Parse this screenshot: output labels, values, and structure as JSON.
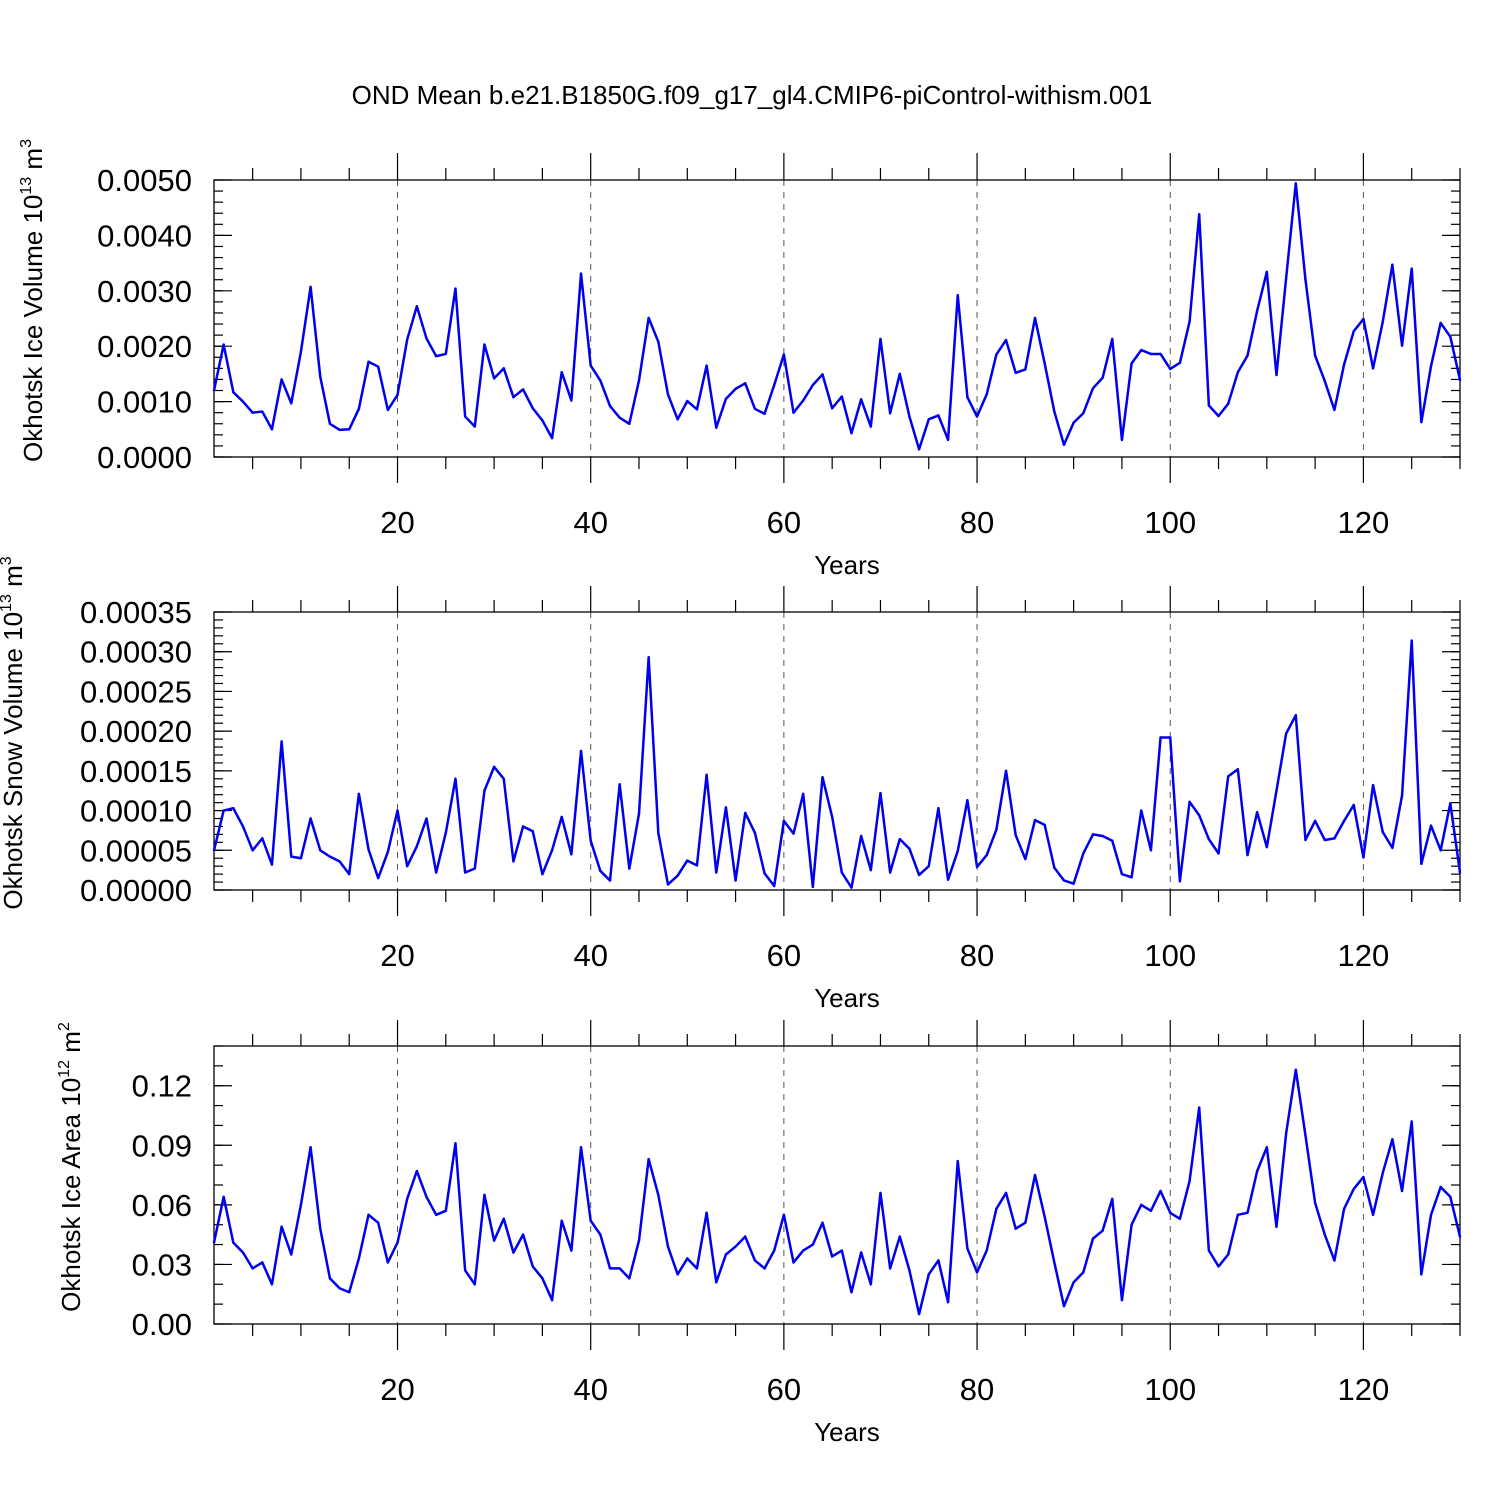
{
  "title": "OND Mean b.e21.B1850G.f09_g17_gl4.CMIP6-piControl-withism.001",
  "colors": {
    "line": "#0000ee",
    "grid": "#555555",
    "axis": "#000000"
  },
  "chart_data": [
    {
      "type": "line",
      "ylabel": "Okhotsk Ice Volume 10",
      "ylabel_sup": "13",
      "ylabel_unit": " m",
      "ylabel_unit_sup": "3",
      "xlabel": "Years",
      "xlim": [
        1,
        130
      ],
      "ylim": [
        0,
        0.005
      ],
      "xticks": [
        20,
        40,
        60,
        80,
        100,
        120
      ],
      "xtick_labels": [
        "20",
        "40",
        "60",
        "80",
        "100",
        "120"
      ],
      "yticks": [
        0,
        0.001,
        0.002,
        0.003,
        0.004,
        0.005
      ],
      "ytick_labels": [
        "0.0000",
        "0.0010",
        "0.0020",
        "0.0030",
        "0.0040",
        "0.0050"
      ],
      "y_minor_step": 0.0002,
      "grid": "vertical-dashed",
      "series": [
        {
          "values": [
            0.0012,
            0.00203,
            0.00117,
            0.001,
            0.0008,
            0.00082,
            0.0005,
            0.0014,
            0.00097,
            0.0019,
            0.00307,
            0.00145,
            0.0006,
            0.00049,
            0.0005,
            0.00087,
            0.00172,
            0.00163,
            0.00085,
            0.00112,
            0.00212,
            0.00272,
            0.00214,
            0.00182,
            0.00186,
            0.00304,
            0.00073,
            0.00055,
            0.00203,
            0.00142,
            0.0016,
            0.00108,
            0.00122,
            0.00088,
            0.00066,
            0.00034,
            0.00153,
            0.00102,
            0.00331,
            0.00165,
            0.00138,
            0.00092,
            0.00071,
            0.0006,
            0.00138,
            0.00251,
            0.00208,
            0.00113,
            0.00068,
            0.00101,
            0.00086,
            0.00165,
            0.00053,
            0.00105,
            0.00123,
            0.00133,
            0.00087,
            0.00078,
            0.0013,
            0.00185,
            0.0008,
            0.00102,
            0.0013,
            0.00149,
            0.00088,
            0.00109,
            0.00043,
            0.00104,
            0.00055,
            0.00213,
            0.00079,
            0.0015,
            0.00073,
            0.00014,
            0.00068,
            0.00075,
            0.00031,
            0.00292,
            0.00108,
            0.00073,
            0.00113,
            0.00185,
            0.00211,
            0.00152,
            0.00158,
            0.00251,
            0.00169,
            0.00082,
            0.00022,
            0.00062,
            0.00079,
            0.00124,
            0.00143,
            0.00213,
            0.00031,
            0.00169,
            0.00193,
            0.00186,
            0.00186,
            0.00159,
            0.0017,
            0.00244,
            0.00438,
            0.00093,
            0.00074,
            0.00096,
            0.00153,
            0.00183,
            0.00264,
            0.00334,
            0.00148,
            0.00323,
            0.00494,
            0.0032,
            0.00183,
            0.00137,
            0.00085,
            0.00167,
            0.00227,
            0.00249,
            0.0016,
            0.00244,
            0.00347,
            0.00201,
            0.0034,
            0.00063,
            0.00164,
            0.00242,
            0.00217,
            0.00139
          ]
        }
      ]
    },
    {
      "type": "line",
      "ylabel": "Okhotsk Snow Volume 10",
      "ylabel_sup": "13",
      "ylabel_unit": " m",
      "ylabel_unit_sup": "3",
      "xlabel": "Years",
      "xlim": [
        1,
        130
      ],
      "ylim": [
        0,
        0.00035
      ],
      "xticks": [
        20,
        40,
        60,
        80,
        100,
        120
      ],
      "xtick_labels": [
        "20",
        "40",
        "60",
        "80",
        "100",
        "120"
      ],
      "yticks": [
        0,
        5e-05,
        0.0001,
        0.00015,
        0.0002,
        0.00025,
        0.0003,
        0.00035
      ],
      "ytick_labels": [
        "0.00000",
        "0.00005",
        "0.00010",
        "0.00015",
        "0.00020",
        "0.00025",
        "0.00030",
        "0.00035"
      ],
      "y_minor_step": 1e-05,
      "grid": "vertical-dashed",
      "series": [
        {
          "values": [
            5e-05,
            0.0001,
            0.000103,
            8e-05,
            5e-05,
            6.5e-05,
            3.2e-05,
            0.000187,
            4.2e-05,
            4e-05,
            9e-05,
            5e-05,
            4.2e-05,
            3.6e-05,
            2e-05,
            0.000121,
            5.1e-05,
            1.5e-05,
            4.8e-05,
            0.0001,
            3e-05,
            5.5e-05,
            9e-05,
            2.2e-05,
            7.2e-05,
            0.00014,
            2.2e-05,
            2.7e-05,
            0.000125,
            0.000155,
            0.00014,
            3.6e-05,
            8e-05,
            7.4e-05,
            2e-05,
            5e-05,
            9.2e-05,
            4.5e-05,
            0.000175,
            6.2e-05,
            2.4e-05,
            1.2e-05,
            0.000133,
            2.7e-05,
            9.6e-05,
            0.000293,
            7.2e-05,
            7e-06,
            1.8e-05,
            3.7e-05,
            3.1e-05,
            0.000145,
            2.2e-05,
            0.000104,
            1.2e-05,
            9.7e-05,
            7.2e-05,
            2.1e-05,
            5e-06,
            8.7e-05,
            7.1e-05,
            0.000121,
            4e-06,
            0.000142,
            9.2e-05,
            2.2e-05,
            3e-06,
            6.8e-05,
            2.5e-05,
            0.000122,
            2.2e-05,
            6.4e-05,
            5.2e-05,
            1.9e-05,
            3e-05,
            0.000103,
            1.3e-05,
            4.9e-05,
            0.000113,
            2.9e-05,
            4.4e-05,
            7.6e-05,
            0.00015,
            6.9e-05,
            3.9e-05,
            8.8e-05,
            8.2e-05,
            2.8e-05,
            1.2e-05,
            8e-06,
            4.6e-05,
            7e-05,
            6.8e-05,
            6.2e-05,
            2e-05,
            1.6e-05,
            0.0001,
            5e-05,
            0.000192,
            0.000192,
            1.1e-05,
            0.000111,
            9.4e-05,
            6.4e-05,
            4.6e-05,
            0.000143,
            0.000152,
            4.4e-05,
            9.8e-05,
            5.4e-05,
            0.000125,
            0.000197,
            0.00022,
            6.3e-05,
            8.7e-05,
            6.3e-05,
            6.5e-05,
            8.7e-05,
            0.000107,
            4.1e-05,
            0.000132,
            7.3e-05,
            5.3e-05,
            0.000119,
            0.000314,
            3.3e-05,
            8.1e-05,
            5e-05,
            0.000109,
            2.2e-05
          ]
        }
      ]
    },
    {
      "type": "line",
      "ylabel": "Okhotsk Ice Area 10",
      "ylabel_sup": "12",
      "ylabel_unit": " m",
      "ylabel_unit_sup": "2",
      "xlabel": "Years",
      "xlim": [
        1,
        130
      ],
      "ylim": [
        0,
        0.14
      ],
      "xticks": [
        20,
        40,
        60,
        80,
        100,
        120
      ],
      "xtick_labels": [
        "20",
        "40",
        "60",
        "80",
        "100",
        "120"
      ],
      "yticks": [
        0,
        0.03,
        0.06,
        0.09,
        0.12
      ],
      "ytick_labels": [
        "0.00",
        "0.03",
        "0.06",
        "0.09",
        "0.12"
      ],
      "y_minor_step": 0.01,
      "grid": "vertical-dashed",
      "series": [
        {
          "values": [
            0.041,
            0.064,
            0.041,
            0.036,
            0.028,
            0.031,
            0.02,
            0.049,
            0.035,
            0.06,
            0.089,
            0.048,
            0.023,
            0.018,
            0.016,
            0.033,
            0.055,
            0.051,
            0.031,
            0.041,
            0.063,
            0.077,
            0.064,
            0.055,
            0.057,
            0.091,
            0.027,
            0.02,
            0.065,
            0.042,
            0.053,
            0.036,
            0.045,
            0.029,
            0.023,
            0.012,
            0.052,
            0.037,
            0.089,
            0.052,
            0.045,
            0.028,
            0.028,
            0.023,
            0.042,
            0.083,
            0.065,
            0.039,
            0.025,
            0.033,
            0.028,
            0.056,
            0.021,
            0.035,
            0.039,
            0.044,
            0.032,
            0.028,
            0.037,
            0.055,
            0.031,
            0.037,
            0.04,
            0.051,
            0.034,
            0.037,
            0.016,
            0.036,
            0.02,
            0.066,
            0.028,
            0.044,
            0.027,
            0.005,
            0.025,
            0.032,
            0.011,
            0.082,
            0.038,
            0.026,
            0.037,
            0.058,
            0.066,
            0.048,
            0.051,
            0.075,
            0.054,
            0.031,
            0.009,
            0.021,
            0.026,
            0.043,
            0.047,
            0.063,
            0.012,
            0.05,
            0.06,
            0.057,
            0.067,
            0.056,
            0.053,
            0.072,
            0.109,
            0.037,
            0.029,
            0.035,
            0.055,
            0.056,
            0.077,
            0.089,
            0.049,
            0.096,
            0.128,
            0.095,
            0.061,
            0.045,
            0.032,
            0.058,
            0.068,
            0.074,
            0.055,
            0.076,
            0.093,
            0.067,
            0.102,
            0.025,
            0.055,
            0.069,
            0.064,
            0.044
          ]
        }
      ]
    }
  ]
}
